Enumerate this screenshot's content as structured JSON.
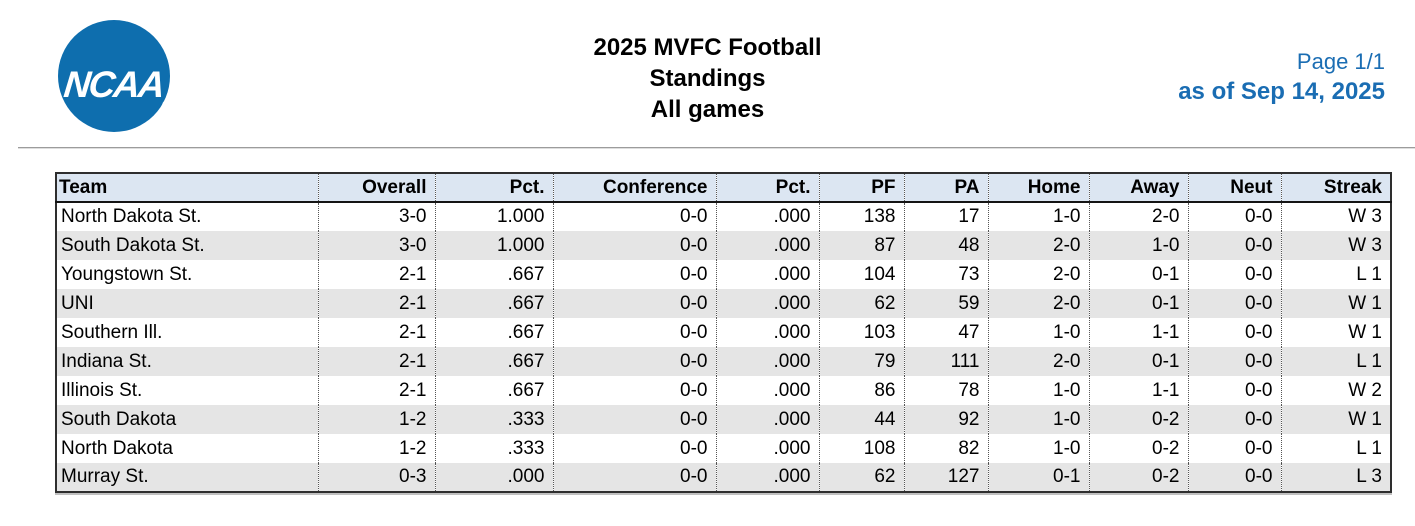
{
  "header": {
    "logo_text": "NCAA",
    "logo_registered": "®",
    "title_lines": [
      "2025 MVFC Football",
      "Standings",
      "All games"
    ],
    "page_label": "Page 1/1",
    "as_of_label": "as of Sep 14, 2025"
  },
  "colors": {
    "ncaa_blue": "#0e6eae",
    "accent_blue": "#1a6db3",
    "header_row_bg": "#dce6f2",
    "alt_row_bg": "#e5e5e5"
  },
  "table": {
    "columns": [
      "Team",
      "Overall",
      "Pct.",
      "Conference",
      "Pct.",
      "PF",
      "PA",
      "Home",
      "Away",
      "Neut",
      "Streak"
    ],
    "rows": [
      [
        "North Dakota St.",
        "3-0",
        "1.000",
        "0-0",
        ".000",
        "138",
        "17",
        "1-0",
        "2-0",
        "0-0",
        "W 3"
      ],
      [
        "South Dakota St.",
        "3-0",
        "1.000",
        "0-0",
        ".000",
        "87",
        "48",
        "2-0",
        "1-0",
        "0-0",
        "W 3"
      ],
      [
        "Youngstown St.",
        "2-1",
        ".667",
        "0-0",
        ".000",
        "104",
        "73",
        "2-0",
        "0-1",
        "0-0",
        "L 1"
      ],
      [
        "UNI",
        "2-1",
        ".667",
        "0-0",
        ".000",
        "62",
        "59",
        "2-0",
        "0-1",
        "0-0",
        "W 1"
      ],
      [
        "Southern Ill.",
        "2-1",
        ".667",
        "0-0",
        ".000",
        "103",
        "47",
        "1-0",
        "1-1",
        "0-0",
        "W 1"
      ],
      [
        "Indiana St.",
        "2-1",
        ".667",
        "0-0",
        ".000",
        "79",
        "111",
        "2-0",
        "0-1",
        "0-0",
        "L 1"
      ],
      [
        "Illinois St.",
        "2-1",
        ".667",
        "0-0",
        ".000",
        "86",
        "78",
        "1-0",
        "1-1",
        "0-0",
        "W 2"
      ],
      [
        "South Dakota",
        "1-2",
        ".333",
        "0-0",
        ".000",
        "44",
        "92",
        "1-0",
        "0-2",
        "0-0",
        "W 1"
      ],
      [
        "North Dakota",
        "1-2",
        ".333",
        "0-0",
        ".000",
        "108",
        "82",
        "1-0",
        "0-2",
        "0-0",
        "L 1"
      ],
      [
        "Murray St.",
        "0-3",
        ".000",
        "0-0",
        ".000",
        "62",
        "127",
        "0-1",
        "0-2",
        "0-0",
        "L 3"
      ]
    ]
  }
}
